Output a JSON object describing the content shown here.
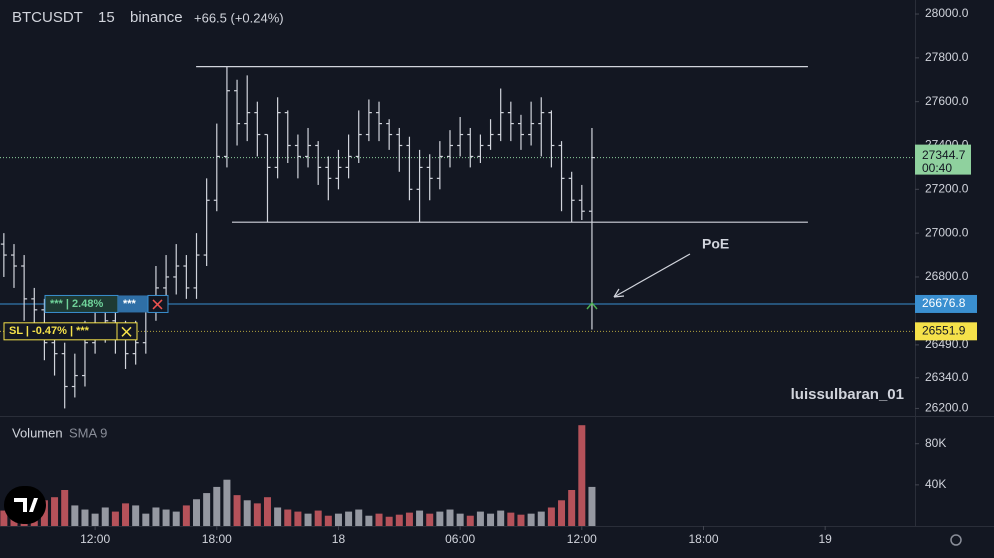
{
  "header": {
    "symbol": "BTCUSDT",
    "interval": "15",
    "exchange": "binance",
    "change": "+66.5 (+0.24%)"
  },
  "chart_data": {
    "type": "ohlc",
    "color": "#d1d4dc",
    "x": [
      7.5,
      8,
      8.5,
      9,
      9.5,
      10,
      10.5,
      11,
      11.5,
      12,
      12.5,
      13,
      13.5,
      14,
      14.5,
      15,
      15.5,
      16,
      16.5,
      17,
      17.5,
      18,
      18.5,
      19,
      19.5,
      20,
      20.5,
      21,
      21.5,
      22,
      22.5,
      23,
      23.5,
      24,
      24.5,
      25,
      25.5,
      26,
      26.5,
      27,
      27.5,
      28,
      28.5,
      29,
      29.5,
      30,
      30.5,
      31,
      31.5,
      32,
      32.5,
      33,
      33.5,
      34,
      34.5,
      35,
      35.5,
      36,
      36.5
    ],
    "open": [
      26950,
      26900,
      26850,
      26700,
      26650,
      26500,
      26450,
      26300,
      26350,
      26500,
      26550,
      26600,
      26550,
      26450,
      26500,
      26650,
      26750,
      26800,
      26850,
      26750,
      26900,
      27150,
      27350,
      27650,
      27500,
      27550,
      27450,
      27300,
      27550,
      27400,
      27350,
      27400,
      27300,
      27250,
      27300,
      27350,
      27450,
      27550,
      27500,
      27450,
      27400,
      27200,
      27300,
      27250,
      27350,
      27400,
      27450,
      27350,
      27400,
      27450,
      27550,
      27500,
      27450,
      27500,
      27550,
      27400,
      27250,
      27150,
      27100
    ],
    "high": [
      27000,
      26950,
      26900,
      26750,
      26700,
      26550,
      26500,
      26450,
      26600,
      26650,
      26700,
      26650,
      26600,
      26600,
      26700,
      26850,
      26900,
      26950,
      26900,
      27000,
      27250,
      27500,
      27760,
      27700,
      27720,
      27600,
      27450,
      27620,
      27560,
      27450,
      27480,
      27420,
      27350,
      27380,
      27450,
      27560,
      27610,
      27600,
      27520,
      27480,
      27440,
      27380,
      27360,
      27420,
      27470,
      27530,
      27480,
      27450,
      27520,
      27660,
      27600,
      27540,
      27600,
      27620,
      27560,
      27420,
      27280,
      27220,
      27480
    ],
    "low": [
      26800,
      26750,
      26600,
      26550,
      26420,
      26350,
      26200,
      26250,
      26300,
      26450,
      26500,
      26450,
      26380,
      26400,
      26450,
      26600,
      26700,
      26720,
      26700,
      26700,
      26850,
      27100,
      27300,
      27400,
      27420,
      27350,
      27050,
      27250,
      27320,
      27250,
      27300,
      27220,
      27150,
      27200,
      27250,
      27320,
      27420,
      27420,
      27380,
      27280,
      27150,
      27050,
      27150,
      27200,
      27300,
      27350,
      27300,
      27320,
      27380,
      27420,
      27420,
      27380,
      27400,
      27350,
      27300,
      27100,
      27050,
      27060,
      26560
    ],
    "close": [
      26900,
      26850,
      26700,
      26650,
      26500,
      26450,
      26300,
      26350,
      26500,
      26550,
      26600,
      26550,
      26450,
      26500,
      26650,
      26750,
      26800,
      26850,
      26750,
      26900,
      27150,
      27350,
      27650,
      27500,
      27550,
      27450,
      27300,
      27550,
      27400,
      27350,
      27400,
      27300,
      27250,
      27300,
      27350,
      27450,
      27550,
      27500,
      27450,
      27400,
      27200,
      27300,
      27250,
      27350,
      27400,
      27450,
      27350,
      27400,
      27450,
      27550,
      27500,
      27450,
      27500,
      27550,
      27400,
      27250,
      27150,
      27100,
      27344.7
    ],
    "xlim": [
      7.31,
      52.43
    ],
    "xticks": [
      {
        "value": 12,
        "label": "12:00"
      },
      {
        "value": 18,
        "label": "18:00"
      },
      {
        "value": 24,
        "label": "18"
      },
      {
        "value": 30,
        "label": "06:00"
      },
      {
        "value": 36,
        "label": "12:00"
      },
      {
        "value": 42,
        "label": "18:00"
      },
      {
        "value": 48,
        "label": "19"
      }
    ],
    "ylim": [
      26170,
      28064
    ],
    "yticks": [
      {
        "value": 28000,
        "label": "28000.0"
      },
      {
        "value": 27800,
        "label": "27800.0"
      },
      {
        "value": 27600,
        "label": "27600.0"
      },
      {
        "value": 27400,
        "label": "27400.0"
      },
      {
        "value": 27200,
        "label": "27200.0"
      },
      {
        "value": 27000,
        "label": "27000.0"
      },
      {
        "value": 26800,
        "label": "26800.0"
      },
      {
        "value": 26490,
        "label": "26490.0"
      },
      {
        "value": 26340,
        "label": "26340.0"
      },
      {
        "value": 26200,
        "label": "26200.0"
      }
    ],
    "grid": false,
    "last_price": 27344.7,
    "countdown": "00:40",
    "last_price_color": "#8fd19e",
    "entry": {
      "price": 26676.8,
      "label": "*** | 2.48%",
      "tag": "***",
      "color": "#3a8fd0"
    },
    "stop": {
      "price": 26551.9,
      "label": "SL | -0.47% | ***",
      "color": "#f5e14a"
    },
    "levels": [
      {
        "price": 27760,
        "x": [
          16.98,
          47.15
        ]
      },
      {
        "price": 27050,
        "x": [
          18.75,
          47.15
        ]
      }
    ],
    "annotation": "PoE",
    "watermark": "luissulbaran_01",
    "volume": {
      "title": "Volumen",
      "indicator": "SMA 9",
      "up_color": "#9598a1",
      "down_color": "#b5525a",
      "values": [
        15000,
        22000,
        30000,
        18000,
        25000,
        28000,
        35000,
        20000,
        16000,
        12000,
        18000,
        14000,
        22000,
        20000,
        12000,
        18000,
        16000,
        14000,
        20000,
        26000,
        32000,
        38000,
        45000,
        30000,
        25000,
        22000,
        28000,
        18000,
        16000,
        14000,
        12000,
        15000,
        10000,
        12000,
        14000,
        16000,
        10000,
        12000,
        9000,
        11000,
        13000,
        15000,
        12000,
        14000,
        16000,
        12000,
        10000,
        14000,
        12000,
        15000,
        13000,
        11000,
        12000,
        14000,
        18000,
        25000,
        35000,
        98000,
        38000
      ],
      "ylim": [
        0,
        105000
      ],
      "yticks": [
        {
          "value": 40000,
          "label": "40K"
        },
        {
          "value": 80000,
          "label": "80K"
        }
      ]
    }
  }
}
